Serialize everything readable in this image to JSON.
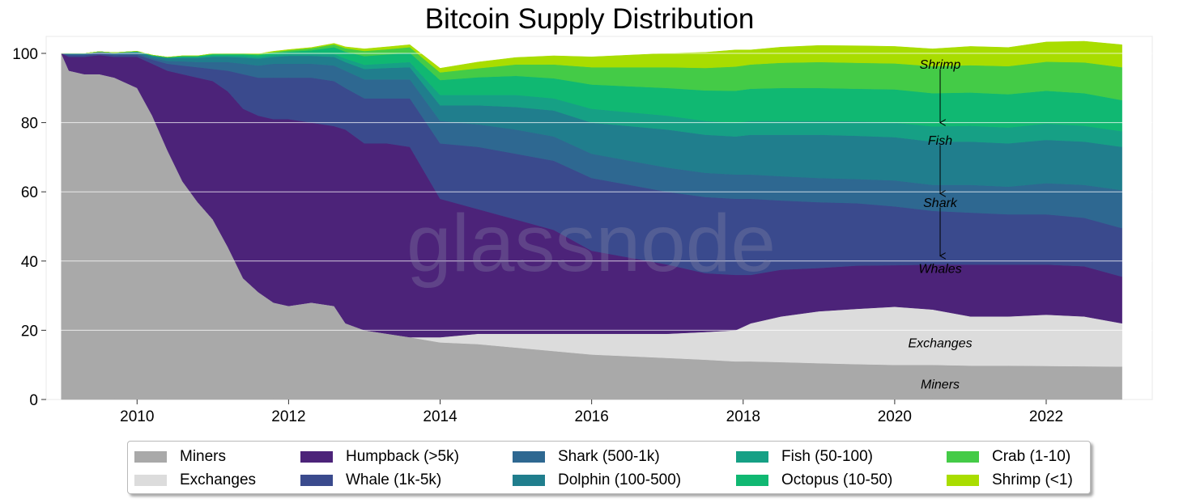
{
  "chart_data": {
    "type": "area",
    "stacked": true,
    "title": "Bitcoin Supply Distribution",
    "xlim": [
      2008.8,
      2023.4
    ],
    "ylim": [
      0,
      100
    ],
    "x_ticks": [
      2010,
      2012,
      2014,
      2016,
      2018,
      2020,
      2022
    ],
    "x_tick_labels": [
      "2010",
      "2012",
      "2014",
      "2016",
      "2018",
      "2020",
      "2022"
    ],
    "y_ticks": [
      0,
      20,
      40,
      60,
      80,
      100
    ],
    "y_tick_labels": [
      "0",
      "20",
      "40",
      "60",
      "80",
      "100"
    ],
    "grid": {
      "y": true,
      "x": false
    },
    "legend_position": "bottom",
    "legend_columns": 5,
    "watermark": "glassnode",
    "x": [
      2009.0,
      2009.1,
      2009.3,
      2009.5,
      2009.7,
      2009.9,
      2010.0,
      2010.2,
      2010.4,
      2010.6,
      2010.8,
      2011.0,
      2011.2,
      2011.4,
      2011.6,
      2011.8,
      2012.0,
      2012.3,
      2012.6,
      2012.75,
      2013.0,
      2013.3,
      2013.6,
      2014.0,
      2014.5,
      2015.0,
      2015.5,
      2016.0,
      2016.5,
      2017.0,
      2017.5,
      2017.9,
      2018.1,
      2018.5,
      2019.0,
      2019.5,
      2020.0,
      2020.5,
      2021.0,
      2021.5,
      2022.0,
      2022.5,
      2023.0
    ],
    "series": [
      {
        "name": "Miners",
        "color": "#a9a9a9",
        "values": [
          100,
          95,
          94,
          94,
          93,
          91,
          90,
          82,
          72,
          63,
          57,
          52,
          44,
          35,
          31,
          28,
          27,
          28,
          27,
          22,
          20,
          19,
          18,
          16.5,
          16,
          15,
          14,
          13,
          12.5,
          12,
          11.5,
          11,
          11,
          10.8,
          10.5,
          10.2,
          10,
          10,
          9.8,
          9.8,
          9.7,
          9.6,
          9.5
        ]
      },
      {
        "name": "Exchanges",
        "color": "#dcdcdc",
        "values": [
          0,
          0,
          0,
          0,
          0,
          0,
          0,
          0,
          0,
          0,
          0,
          0,
          0,
          0,
          0,
          0,
          0,
          0,
          0,
          0,
          0,
          0,
          0,
          1.5,
          3,
          4,
          5,
          6,
          6.5,
          7,
          8,
          9,
          11,
          13.2,
          15,
          16,
          16.8,
          16,
          14.2,
          14.2,
          14.8,
          14.4,
          12.5
        ]
      },
      {
        "name": "Humpback (>5k)",
        "color": "#4c2379",
        "values": [
          0,
          4,
          5,
          5.5,
          6,
          8,
          9,
          15,
          23,
          31,
          36,
          40,
          45,
          49,
          51,
          53,
          54,
          52,
          52,
          56,
          54,
          55,
          55,
          40,
          36,
          33,
          30,
          24,
          22,
          20,
          17,
          16,
          14,
          13.5,
          12.5,
          12.5,
          12,
          13,
          15,
          15,
          14.5,
          14.5,
          13.5
        ]
      },
      {
        "name": "Whale (1k-5k)",
        "color": "#3a4a8d",
        "values": [
          0,
          0.5,
          0.5,
          0.5,
          0.5,
          0.6,
          0.6,
          1.2,
          2,
          2.5,
          3,
          3.5,
          6,
          10,
          11,
          12,
          12,
          13,
          13,
          12,
          13,
          13,
          14,
          16,
          18,
          19,
          20,
          21,
          21,
          21,
          22,
          22,
          22,
          20,
          19,
          18,
          17,
          15.5,
          15,
          14.5,
          14.5,
          14,
          14
        ]
      },
      {
        "name": "Shark (500-1k)",
        "color": "#2e6891",
        "values": [
          0,
          0.3,
          0.3,
          0.3,
          0.4,
          0.4,
          0.4,
          0.5,
          0.8,
          1.2,
          1.5,
          2,
          2.5,
          3,
          3.5,
          4,
          4,
          4,
          4.5,
          5,
          5.5,
          5.5,
          5.5,
          6.5,
          6.5,
          7,
          7,
          7,
          7,
          7,
          7,
          7,
          7,
          7,
          7,
          7,
          7.5,
          7.5,
          8,
          8,
          9,
          9.5,
          11
        ]
      },
      {
        "name": "Dolphin (100-500)",
        "color": "#207e8d",
        "values": [
          0,
          0.2,
          0.2,
          0.2,
          0.3,
          0.3,
          0.4,
          0.5,
          0.8,
          1,
          1.2,
          1.5,
          1.5,
          1.8,
          2,
          2,
          2.3,
          2.3,
          2.5,
          2.5,
          3,
          3.3,
          3.5,
          4.5,
          5.5,
          6.5,
          7.5,
          9,
          10,
          11,
          11,
          11,
          11.5,
          12,
          12.5,
          12.5,
          12.5,
          12.5,
          12.5,
          12.5,
          12.5,
          12.5,
          12.5
        ]
      },
      {
        "name": "Fish (50-100)",
        "color": "#16a085",
        "values": [
          0,
          0,
          0,
          0,
          0,
          0.1,
          0.1,
          0.2,
          0.2,
          0.3,
          0.3,
          0.4,
          0.4,
          0.5,
          0.5,
          0.5,
          0.6,
          0.6,
          0.8,
          1,
          1.2,
          1.3,
          1.5,
          3,
          3,
          3.5,
          3.5,
          4,
          4,
          4,
          4,
          4,
          4,
          4,
          4,
          4.2,
          4.2,
          4.4,
          4.6,
          4.6,
          4.7,
          4.6,
          4.5
        ]
      },
      {
        "name": "Octopus (10-50)",
        "color": "#10b872",
        "values": [
          0,
          0,
          0,
          0,
          0,
          0.1,
          0.1,
          0.1,
          0.1,
          0.2,
          0.2,
          0.3,
          0.3,
          0.4,
          0.5,
          0.6,
          0.6,
          1,
          2,
          2,
          2.5,
          2.6,
          2.7,
          4.3,
          5.1,
          5.5,
          5.8,
          7,
          7.5,
          8,
          8.8,
          9.2,
          9.3,
          9.5,
          9.5,
          9.4,
          9.6,
          9.6,
          9.6,
          9.6,
          9.5,
          9.4,
          9
        ]
      },
      {
        "name": "Crab (1-10)",
        "color": "#44cb47",
        "values": [
          0,
          0,
          0,
          0,
          0,
          0,
          0,
          0,
          0,
          0.1,
          0.1,
          0.2,
          0.2,
          0.2,
          0.3,
          0.3,
          0.4,
          0.6,
          0.8,
          1,
          1.5,
          1.5,
          1.6,
          2.2,
          2.6,
          3.3,
          4,
          5,
          5.5,
          6,
          6.5,
          7,
          7,
          7.3,
          7.5,
          7.5,
          7.5,
          7.8,
          7.9,
          8.1,
          8.4,
          8.9,
          9.5
        ]
      },
      {
        "name": "Shrimp (<1)",
        "color": "#a9dd00",
        "values": [
          0,
          0,
          0,
          0,
          0,
          0,
          0,
          0,
          0,
          0,
          0,
          0,
          0.1,
          0.1,
          0.1,
          0.2,
          0.2,
          0.2,
          0.3,
          0.4,
          0.6,
          0.7,
          0.7,
          1.2,
          1.8,
          2,
          2.5,
          3,
          3.5,
          4,
          4.5,
          4.8,
          4.2,
          4.5,
          4.8,
          4.9,
          4.9,
          5,
          5.4,
          5.4,
          5.7,
          6.1,
          6.5
        ]
      }
    ],
    "annotations": [
      {
        "text": "Shrimp",
        "x": 2020.6,
        "y": 97
      },
      {
        "text": "Fish",
        "x": 2020.6,
        "y": 75
      },
      {
        "text": "Shark",
        "x": 2020.6,
        "y": 57
      },
      {
        "text": "Whales",
        "x": 2020.6,
        "y": 38
      },
      {
        "text": "Exchanges",
        "x": 2020.6,
        "y": 16.5
      },
      {
        "text": "Miners",
        "x": 2020.6,
        "y": 4.5
      }
    ],
    "arrows": [
      {
        "x": 2020.6,
        "y_from": 95.5,
        "y_to": 80
      },
      {
        "x": 2020.6,
        "y_from": 73.5,
        "y_to": 59.5
      },
      {
        "x": 2020.6,
        "y_from": 55.5,
        "y_to": 41.5
      }
    ]
  }
}
